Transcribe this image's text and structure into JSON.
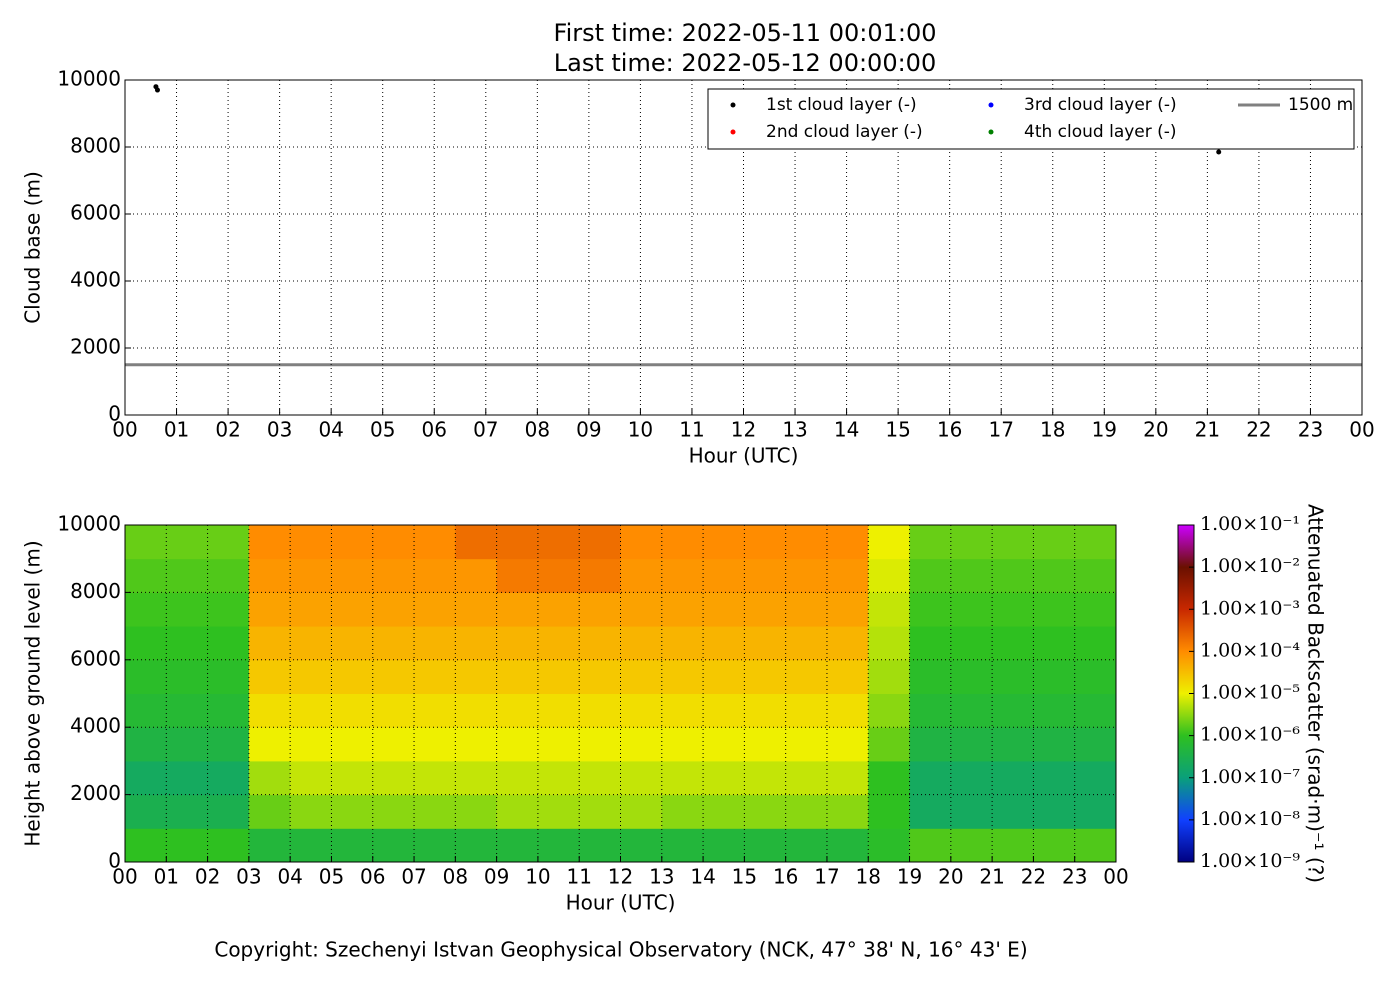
{
  "figure": {
    "title_lines": [
      "First time: 2022-05-11 00:01:00",
      "Last time: 2022-05-12 00:00:00"
    ],
    "copyright": "Copyright: Szechenyi Istvan Geophysical Observatory (NCK, 47° 38' N, 16° 43' E)"
  },
  "chart_data": [
    {
      "type": "scatter",
      "xlabel": "Hour (UTC)",
      "ylabel": "Cloud base (m)",
      "xlim": [
        0,
        24
      ],
      "ylim": [
        0,
        10000
      ],
      "grid": true,
      "legend": "upper right",
      "legend_columns": 3,
      "xticks": [
        {
          "value": 0,
          "label": "00"
        },
        {
          "value": 1,
          "label": "01"
        },
        {
          "value": 2,
          "label": "02"
        },
        {
          "value": 3,
          "label": "03"
        },
        {
          "value": 4,
          "label": "04"
        },
        {
          "value": 5,
          "label": "05"
        },
        {
          "value": 6,
          "label": "06"
        },
        {
          "value": 7,
          "label": "07"
        },
        {
          "value": 8,
          "label": "08"
        },
        {
          "value": 9,
          "label": "09"
        },
        {
          "value": 10,
          "label": "10"
        },
        {
          "value": 11,
          "label": "11"
        },
        {
          "value": 12,
          "label": "12"
        },
        {
          "value": 13,
          "label": "13"
        },
        {
          "value": 14,
          "label": "14"
        },
        {
          "value": 15,
          "label": "15"
        },
        {
          "value": 16,
          "label": "16"
        },
        {
          "value": 17,
          "label": "17"
        },
        {
          "value": 18,
          "label": "18"
        },
        {
          "value": 19,
          "label": "19"
        },
        {
          "value": 20,
          "label": "20"
        },
        {
          "value": 21,
          "label": "21"
        },
        {
          "value": 22,
          "label": "22"
        },
        {
          "value": 23,
          "label": "23"
        },
        {
          "value": 24,
          "label": "00"
        }
      ],
      "yticks": [
        0,
        2000,
        4000,
        6000,
        8000,
        10000
      ],
      "series": [
        {
          "name": "1st cloud layer (-)",
          "color": "#000000",
          "x": [
            0.6,
            0.63,
            21.22
          ],
          "values": [
            9800,
            9700,
            7850
          ]
        },
        {
          "name": "2nd cloud layer (-)",
          "color": "#ff0000",
          "x": [],
          "values": []
        },
        {
          "name": "3rd cloud layer (-)",
          "color": "#0000ff",
          "x": [],
          "values": []
        },
        {
          "name": "4th cloud layer (-)",
          "color": "#008000",
          "x": [],
          "values": []
        }
      ],
      "hlines": [
        {
          "name": "1500 m",
          "color": "#808080",
          "value": 1500
        }
      ]
    },
    {
      "type": "heatmap",
      "xlabel": "Hour (UTC)",
      "ylabel": "Height above ground level (m)",
      "colorbar_label": "Attenuated Backscatter (srad·m)⁻¹ (?)",
      "xlim": [
        0,
        24
      ],
      "ylim": [
        0,
        10000
      ],
      "grid": true,
      "xticks": [
        {
          "value": 0,
          "label": "00"
        },
        {
          "value": 1,
          "label": "01"
        },
        {
          "value": 2,
          "label": "02"
        },
        {
          "value": 3,
          "label": "03"
        },
        {
          "value": 4,
          "label": "04"
        },
        {
          "value": 5,
          "label": "05"
        },
        {
          "value": 6,
          "label": "06"
        },
        {
          "value": 7,
          "label": "07"
        },
        {
          "value": 8,
          "label": "08"
        },
        {
          "value": 9,
          "label": "09"
        },
        {
          "value": 10,
          "label": "10"
        },
        {
          "value": 11,
          "label": "11"
        },
        {
          "value": 12,
          "label": "12"
        },
        {
          "value": 13,
          "label": "13"
        },
        {
          "value": 14,
          "label": "14"
        },
        {
          "value": 15,
          "label": "15"
        },
        {
          "value": 16,
          "label": "16"
        },
        {
          "value": 17,
          "label": "17"
        },
        {
          "value": 18,
          "label": "18"
        },
        {
          "value": 19,
          "label": "19"
        },
        {
          "value": 20,
          "label": "20"
        },
        {
          "value": 21,
          "label": "21"
        },
        {
          "value": 22,
          "label": "22"
        },
        {
          "value": 23,
          "label": "23"
        },
        {
          "value": 24,
          "label": "00"
        }
      ],
      "yticks": [
        0,
        2000,
        4000,
        6000,
        8000,
        10000
      ],
      "zscale": "log",
      "zlim": [
        1e-09,
        0.1
      ],
      "zticks": [
        {
          "value": 1e-09,
          "label": "1.00×10⁻⁹"
        },
        {
          "value": 1e-08,
          "label": "1.00×10⁻⁸"
        },
        {
          "value": 1e-07,
          "label": "1.00×10⁻⁷"
        },
        {
          "value": 1e-06,
          "label": "1.00×10⁻⁶"
        },
        {
          "value": 1e-05,
          "label": "1.00×10⁻⁵"
        },
        {
          "value": 0.0001,
          "label": "1.00×10⁻⁴"
        },
        {
          "value": 0.001,
          "label": "1.00×10⁻³"
        },
        {
          "value": 0.01,
          "label": "1.00×10⁻²"
        },
        {
          "value": 0.1,
          "label": "1.00×10⁻¹"
        }
      ],
      "colormap": [
        "#000080",
        "#1040ff",
        "#0aa07a",
        "#2ec020",
        "#eef000",
        "#ff8c00",
        "#c82800",
        "#6a1000",
        "#cc00ff"
      ],
      "x_edges": [
        0,
        1,
        2,
        3,
        4,
        5,
        6,
        7,
        8,
        9,
        10,
        11,
        12,
        13,
        14,
        15,
        16,
        17,
        18,
        19,
        20,
        21,
        22,
        23,
        24
      ],
      "y_edges": [
        0,
        1000,
        2000,
        3000,
        4000,
        5000,
        6000,
        7000,
        8000,
        9000,
        10000
      ],
      "z": [
        [
          1e-06,
          1e-06,
          1e-06,
          5e-07,
          5e-07,
          5e-07,
          5e-07,
          5e-07,
          5e-07,
          5e-07,
          5e-07,
          5e-07,
          5e-07,
          5e-07,
          5e-07,
          5e-07,
          5e-07,
          5e-07,
          8e-07,
          1.5e-06,
          1.5e-06,
          1.5e-06,
          1.5e-06,
          1.5e-06
        ],
        [
          3e-07,
          3e-07,
          3e-07,
          2e-06,
          3e-06,
          3e-06,
          3e-06,
          3e-06,
          3e-06,
          4e-06,
          4e-06,
          4e-06,
          4e-06,
          3e-06,
          3e-06,
          3e-06,
          3e-06,
          3e-06,
          1e-06,
          2e-07,
          2e-07,
          2e-07,
          2e-07,
          2e-07
        ],
        [
          2e-07,
          2e-07,
          2e-07,
          4e-06,
          6e-06,
          6e-06,
          6e-06,
          6e-06,
          6e-06,
          6e-06,
          6e-06,
          6e-06,
          6e-06,
          6e-06,
          6e-06,
          6e-06,
          6e-06,
          6e-06,
          1e-06,
          2e-07,
          2e-07,
          2e-07,
          2e-07,
          2e-07
        ],
        [
          4e-07,
          4e-07,
          4e-07,
          1e-05,
          1e-05,
          1e-05,
          1e-05,
          1e-05,
          1e-05,
          1e-05,
          1e-05,
          1e-05,
          1e-05,
          1e-05,
          1e-05,
          1e-05,
          1e-05,
          1e-05,
          2e-06,
          4e-07,
          4e-07,
          4e-07,
          4e-07,
          4e-07
        ],
        [
          6e-07,
          6e-07,
          6e-07,
          1.5e-05,
          1.5e-05,
          1.5e-05,
          1.5e-05,
          1.5e-05,
          1.5e-05,
          1.5e-05,
          1.5e-05,
          1.5e-05,
          1.5e-05,
          1.5e-05,
          1.5e-05,
          1.5e-05,
          1.5e-05,
          1.5e-05,
          3e-06,
          6e-07,
          6e-07,
          6e-07,
          6e-07,
          6e-07
        ],
        [
          8e-07,
          8e-07,
          8e-07,
          2.5e-05,
          2.5e-05,
          2.5e-05,
          2.5e-05,
          2.5e-05,
          2.5e-05,
          2.5e-05,
          2.5e-05,
          2.5e-05,
          2.5e-05,
          2.5e-05,
          2.5e-05,
          2.5e-05,
          2.5e-05,
          2.5e-05,
          4e-06,
          8e-07,
          8e-07,
          8e-07,
          8e-07,
          8e-07
        ],
        [
          1e-06,
          1e-06,
          1e-06,
          4e-05,
          4e-05,
          4e-05,
          4e-05,
          4e-05,
          4e-05,
          4e-05,
          4e-05,
          4e-05,
          4e-05,
          4e-05,
          4e-05,
          4e-05,
          4e-05,
          4e-05,
          5e-06,
          1e-06,
          1e-06,
          1e-06,
          1e-06,
          1e-06
        ],
        [
          1.2e-06,
          1.2e-06,
          1.2e-06,
          6e-05,
          6e-05,
          6e-05,
          6e-05,
          6e-05,
          6e-05,
          6e-05,
          6e-05,
          6e-05,
          6e-05,
          6e-05,
          6e-05,
          6e-05,
          6e-05,
          6e-05,
          6e-06,
          1.2e-06,
          1.2e-06,
          1.2e-06,
          1.2e-06,
          1.2e-06
        ],
        [
          1.5e-06,
          1.5e-06,
          1.5e-06,
          8e-05,
          8e-05,
          8e-05,
          8e-05,
          8e-05,
          8e-05,
          0.00015,
          0.00015,
          0.00015,
          8e-05,
          8e-05,
          8e-05,
          8e-05,
          8e-05,
          8e-05,
          8e-06,
          1.5e-06,
          1.5e-06,
          1.5e-06,
          1.5e-06,
          1.5e-06
        ],
        [
          2e-06,
          2e-06,
          2e-06,
          0.0001,
          0.0001,
          0.0001,
          0.0001,
          0.0001,
          0.0002,
          0.0002,
          0.0002,
          0.0002,
          0.0001,
          0.0001,
          0.0001,
          0.0001,
          0.0001,
          0.0001,
          1e-05,
          2e-06,
          2e-06,
          2e-06,
          2e-06,
          2e-06
        ]
      ]
    }
  ]
}
